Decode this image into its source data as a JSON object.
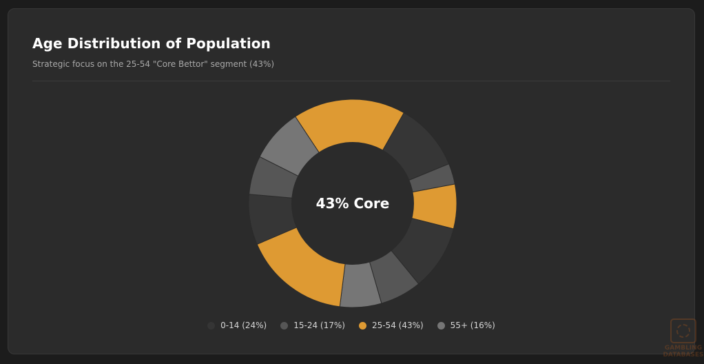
{
  "chart_data": {
    "type": "donut",
    "title": "Age Distribution of Population",
    "subtitle": "Strategic focus on the 25-54 \"Core Bettor\" segment (43%)",
    "center_label": "43% Core",
    "legend_position": "bottom",
    "series": [
      {
        "label": "0-14 (24%)",
        "value": 24,
        "color": "#363636"
      },
      {
        "label": "15-24 (17%)",
        "value": 17,
        "color": "#565656"
      },
      {
        "label": "25-54 (43%)",
        "value": 43,
        "color": "#de9a33"
      },
      {
        "label": "55+ (16%)",
        "value": 16,
        "color": "#767676"
      }
    ],
    "slices": [
      {
        "series": 2,
        "value": 19.0
      },
      {
        "series": 0,
        "value": 11.5
      },
      {
        "series": 1,
        "value": 3.5
      },
      {
        "series": 2,
        "value": 7.5
      },
      {
        "series": 0,
        "value": 11.0
      },
      {
        "series": 1,
        "value": 7.0
      },
      {
        "series": 3,
        "value": 7.0
      },
      {
        "series": 2,
        "value": 18.0
      },
      {
        "series": 0,
        "value": 8.5
      },
      {
        "series": 1,
        "value": 6.5
      },
      {
        "series": 3,
        "value": 9.0
      }
    ]
  },
  "watermark": {
    "text_line1": "GAMBLING",
    "text_line2": "DATABASES"
  }
}
